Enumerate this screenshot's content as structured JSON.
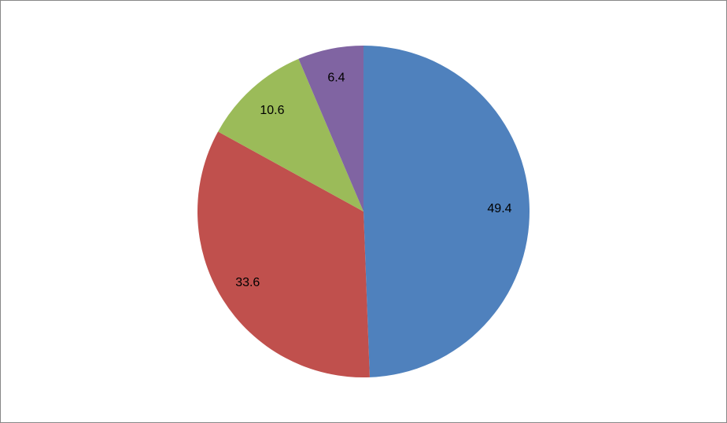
{
  "chart_data": {
    "type": "pie",
    "values": [
      49.4,
      33.6,
      10.6,
      6.4
    ],
    "colors": [
      "#4f81bd",
      "#c0504d",
      "#9bbb59",
      "#8064a2"
    ]
  }
}
